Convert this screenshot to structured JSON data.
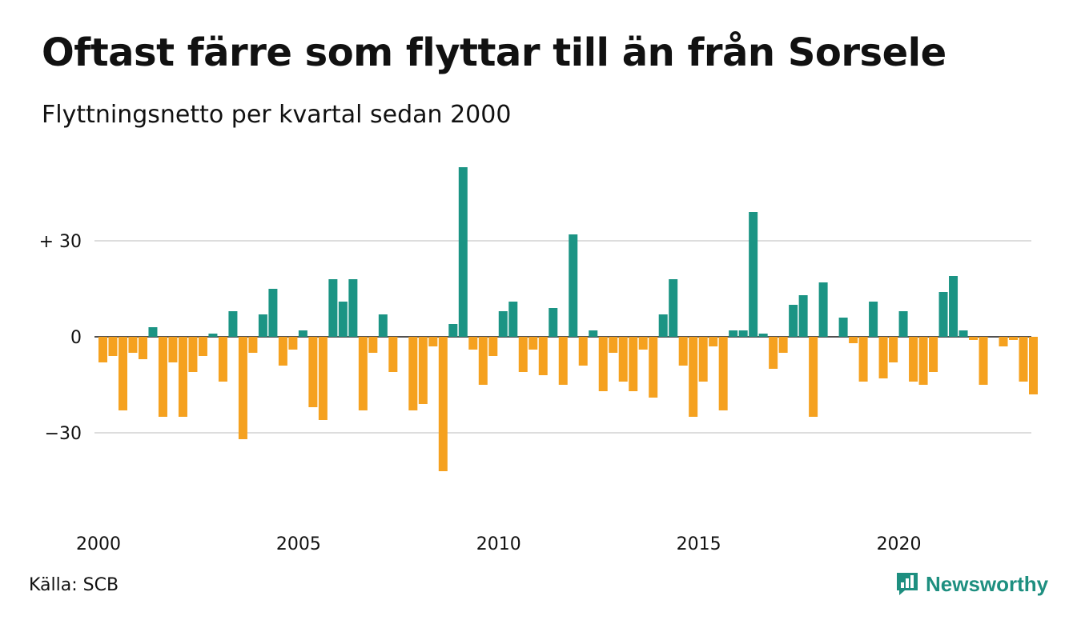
{
  "title": "Oftast färre som flyttar till än från Sorsele",
  "subtitle": "Flyttningsnetto per kvartal sedan 2000",
  "source": "Källa: SCB",
  "brand": "Newsworthy",
  "colors": {
    "positive": "#1b9484",
    "negative": "#f5a11f",
    "brand": "#1e8f80",
    "grid": "#dddddd"
  },
  "chart_data": {
    "type": "bar",
    "title": "Oftast färre som flyttar till än från Sorsele",
    "subtitle": "Flyttningsnetto per kvartal sedan 2000",
    "ylim": [
      -55,
      55
    ],
    "grid": true,
    "y_ticks": [
      30,
      0,
      -30
    ],
    "y_tick_labels": [
      "+ 30",
      "0",
      "−30"
    ],
    "x_ticks": [
      "2000",
      "2005",
      "2010",
      "2015",
      "2020"
    ],
    "start_year": 2000,
    "quarters_per_year": 4,
    "values": [
      -8,
      -6,
      -23,
      -5,
      -7,
      3,
      -25,
      -8,
      -25,
      -11,
      -6,
      1,
      -14,
      8,
      -32,
      -5,
      7,
      15,
      -9,
      -4,
      2,
      -22,
      -26,
      18,
      11,
      18,
      -23,
      -5,
      7,
      -11,
      0,
      -23,
      -21,
      -3,
      -42,
      4,
      53,
      -4,
      -15,
      -6,
      8,
      11,
      -11,
      -4,
      -12,
      9,
      -15,
      32,
      -9,
      2,
      -17,
      -5,
      -14,
      -17,
      -4,
      -19,
      7,
      18,
      -9,
      -25,
      -14,
      -3,
      -23,
      2,
      2,
      39,
      1,
      -10,
      -5,
      10,
      13,
      -25,
      17,
      0,
      6,
      -2,
      -14,
      11,
      -13,
      -8,
      8,
      -14,
      -15,
      -11,
      14,
      19,
      2,
      -1,
      -15,
      0,
      -3,
      -1,
      -14,
      -18
    ]
  }
}
